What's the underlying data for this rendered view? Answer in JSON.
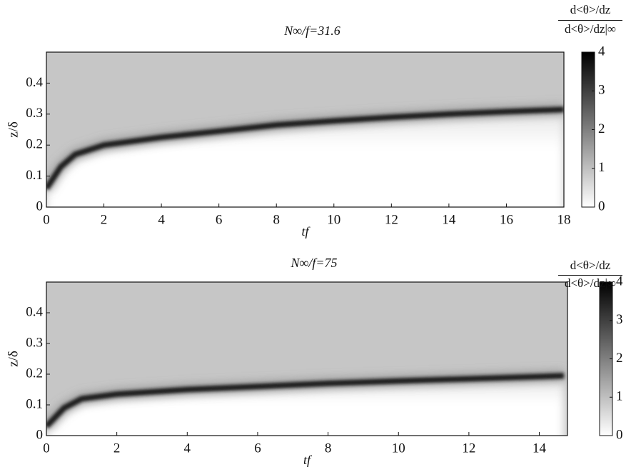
{
  "chart_data": [
    {
      "type": "heatmap",
      "title": "N∞/f=31.6",
      "xlabel": "tf",
      "ylabel": "z/δ",
      "x": [
        0,
        0.5,
        1,
        2,
        4,
        6,
        8,
        10,
        12,
        14,
        16,
        18
      ],
      "series": [
        {
          "color": "#1a1a1a",
          "values": [
            0.06,
            0.13,
            0.17,
            0.2,
            0.225,
            0.245,
            0.265,
            0.278,
            0.29,
            0.3,
            0.308,
            0.315
          ]
        }
      ],
      "background": "#c6c6c6",
      "xlim": [
        0,
        18
      ],
      "ylim": [
        0,
        0.5
      ],
      "xticks": [
        0,
        2,
        4,
        6,
        8,
        10,
        12,
        14,
        16,
        18
      ],
      "yticks": [
        0,
        0.1,
        0.2,
        0.3,
        0.4
      ],
      "colorbar": {
        "label_top": "d<θ>/dz",
        "label_bottom": "d<θ>/dz|∞",
        "clim": [
          0,
          4
        ],
        "ticks": [
          0,
          1,
          2,
          3,
          4
        ]
      }
    },
    {
      "type": "heatmap",
      "title": "N∞/f=75",
      "xlabel": "tf",
      "ylabel": "z/δ",
      "x": [
        0,
        0.5,
        1,
        2,
        4,
        6,
        8,
        10,
        12,
        14,
        14.7
      ],
      "series": [
        {
          "color": "#1a1a1a",
          "values": [
            0.03,
            0.09,
            0.12,
            0.135,
            0.15,
            0.16,
            0.17,
            0.178,
            0.185,
            0.192,
            0.195
          ]
        }
      ],
      "background": "#c6c6c6",
      "xlim": [
        0,
        14.8
      ],
      "ylim": [
        0,
        0.5
      ],
      "xticks": [
        0,
        2,
        4,
        6,
        8,
        10,
        12,
        14
      ],
      "yticks": [
        0,
        0.1,
        0.2,
        0.3,
        0.4
      ],
      "colorbar": {
        "label_top": "d<θ>/dz",
        "label_bottom": "d<θ>/dz|∞",
        "clim": [
          0,
          4
        ],
        "ticks": [
          0,
          1,
          2,
          3,
          4
        ]
      }
    }
  ]
}
